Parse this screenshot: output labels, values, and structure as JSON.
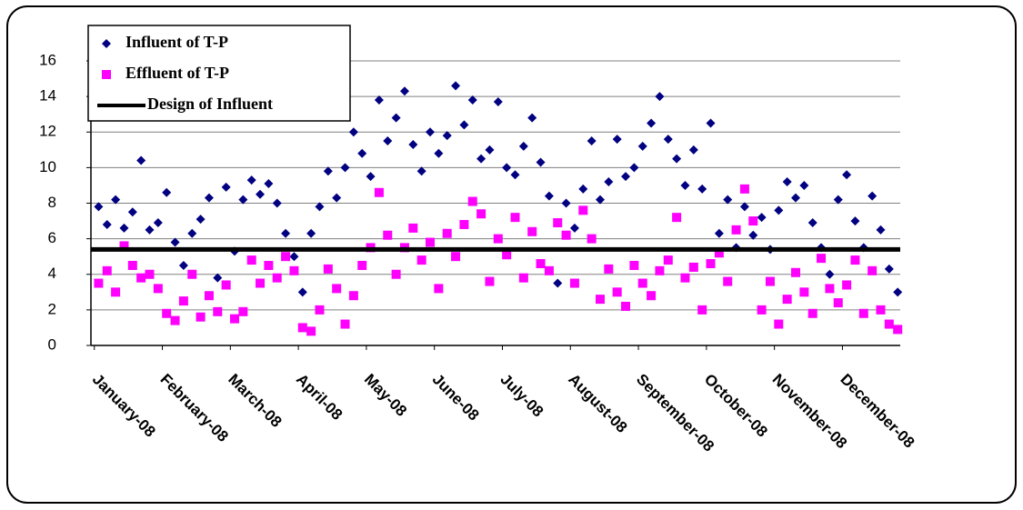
{
  "chart_data": {
    "type": "scatter",
    "xlim": [
      -0.05,
      11.85
    ],
    "ylim": [
      0,
      16
    ],
    "yticks": [
      0,
      2,
      4,
      6,
      8,
      10,
      12,
      14,
      16
    ],
    "grid": true,
    "xticks": [
      {
        "value": 0,
        "label": "January-08"
      },
      {
        "value": 1,
        "label": "February-08"
      },
      {
        "value": 2,
        "label": "March-08"
      },
      {
        "value": 3,
        "label": "April-08"
      },
      {
        "value": 4,
        "label": "May-08"
      },
      {
        "value": 5,
        "label": "June-08"
      },
      {
        "value": 6,
        "label": "July-08"
      },
      {
        "value": 7,
        "label": "August-08"
      },
      {
        "value": 8,
        "label": "September-08"
      },
      {
        "value": 9,
        "label": "October-08"
      },
      {
        "value": 10,
        "label": "November-08"
      },
      {
        "value": 11,
        "label": "December-08"
      }
    ],
    "x": [
      0.0625,
      0.1875,
      0.3125,
      0.4375,
      0.5625,
      0.6875,
      0.8125,
      0.9375,
      1.0625,
      1.1875,
      1.3125,
      1.4375,
      1.5625,
      1.6875,
      1.8125,
      1.9375,
      2.0625,
      2.1875,
      2.3125,
      2.4375,
      2.5625,
      2.6875,
      2.8125,
      2.9375,
      3.0625,
      3.1875,
      3.3125,
      3.4375,
      3.5625,
      3.6875,
      3.8125,
      3.9375,
      4.0625,
      4.1875,
      4.3125,
      4.4375,
      4.5625,
      4.6875,
      4.8125,
      4.9375,
      5.0625,
      5.1875,
      5.3125,
      5.4375,
      5.5625,
      5.6875,
      5.8125,
      5.9375,
      6.0625,
      6.1875,
      6.3125,
      6.4375,
      6.5625,
      6.6875,
      6.8125,
      6.9375,
      7.0625,
      7.1875,
      7.3125,
      7.4375,
      7.5625,
      7.6875,
      7.8125,
      7.9375,
      8.0625,
      8.1875,
      8.3125,
      8.4375,
      8.5625,
      8.6875,
      8.8125,
      8.9375,
      9.0625,
      9.1875,
      9.3125,
      9.4375,
      9.5625,
      9.6875,
      9.8125,
      9.9375,
      10.0625,
      10.1875,
      10.3125,
      10.4375,
      10.5625,
      10.6875,
      10.8125,
      10.9375,
      11.0625,
      11.1875,
      11.3125,
      11.4375,
      11.5625,
      11.6875,
      11.8125
    ],
    "series": [
      {
        "name": "Influent of T-P",
        "color": "#000080",
        "marker": "diamond",
        "values": [
          7.8,
          6.8,
          8.2,
          6.6,
          7.5,
          10.4,
          6.5,
          6.9,
          8.6,
          5.8,
          4.5,
          6.3,
          7.1,
          8.3,
          3.8,
          8.9,
          5.3,
          8.2,
          9.3,
          8.5,
          9.1,
          8.0,
          6.3,
          5.0,
          3.0,
          6.3,
          7.8,
          9.8,
          8.3,
          10.0,
          12.0,
          10.8,
          9.5,
          13.8,
          11.5,
          12.8,
          14.3,
          11.3,
          9.8,
          12.0,
          10.8,
          11.8,
          14.6,
          12.4,
          13.8,
          10.5,
          11.0,
          13.7,
          10.0,
          9.6,
          11.2,
          12.8,
          10.3,
          8.4,
          3.5,
          8.0,
          6.6,
          8.8,
          11.5,
          8.2,
          9.2,
          11.6,
          9.5,
          10.0,
          11.2,
          12.5,
          14.0,
          11.6,
          10.5,
          9.0,
          11.0,
          8.8,
          12.5,
          6.3,
          8.2,
          5.5,
          7.8,
          6.2,
          7.2,
          5.4,
          7.6,
          9.2,
          8.3,
          9.0,
          6.9,
          5.5,
          4.0,
          8.2,
          9.6,
          7.0,
          5.5,
          8.4,
          6.5,
          4.3,
          3.0
        ]
      },
      {
        "name": "Effluent of T-P",
        "color": "#ff00ff",
        "marker": "square",
        "values": [
          3.5,
          4.2,
          3.0,
          5.6,
          4.5,
          3.8,
          4.0,
          3.2,
          1.8,
          1.4,
          2.5,
          4.0,
          1.6,
          2.8,
          1.9,
          3.4,
          1.5,
          1.9,
          4.8,
          3.5,
          4.5,
          3.8,
          5.0,
          4.2,
          1.0,
          0.8,
          2.0,
          4.3,
          3.2,
          1.2,
          2.8,
          4.5,
          5.5,
          8.6,
          6.2,
          4.0,
          5.5,
          6.6,
          4.8,
          5.8,
          3.2,
          6.3,
          5.0,
          6.8,
          8.1,
          7.4,
          3.6,
          6.0,
          5.1,
          7.2,
          3.8,
          6.4,
          4.6,
          4.2,
          6.9,
          6.2,
          3.5,
          7.6,
          6.0,
          2.6,
          4.3,
          3.0,
          2.2,
          4.5,
          3.5,
          2.8,
          4.2,
          4.8,
          7.2,
          3.8,
          4.4,
          2.0,
          4.6,
          5.2,
          3.6,
          6.5,
          8.8,
          7.0,
          2.0,
          3.6,
          1.2,
          2.6,
          4.1,
          3.0,
          1.8,
          4.9,
          3.2,
          2.4,
          3.4,
          4.8,
          1.8,
          4.2,
          2.0,
          1.2,
          0.9
        ]
      },
      {
        "name": "Design of Influent",
        "color": "#000000",
        "marker": "line",
        "x": [
          -0.05,
          11.85
        ],
        "values": [
          5.4,
          5.4
        ]
      }
    ]
  }
}
